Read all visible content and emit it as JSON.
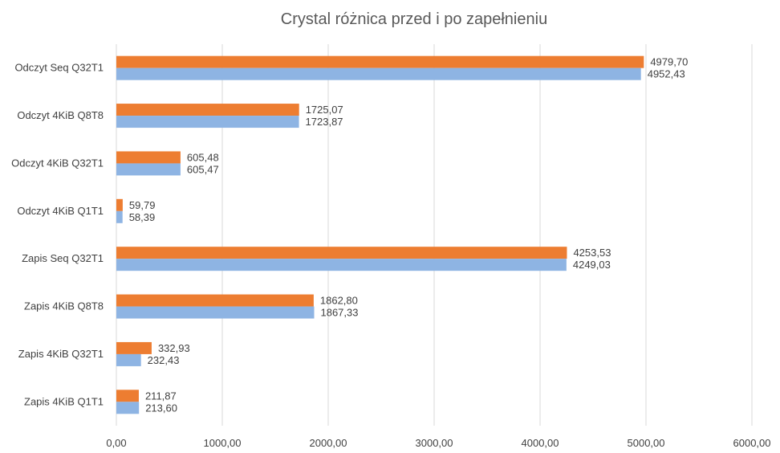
{
  "chart_data": {
    "type": "bar",
    "orientation": "horizontal",
    "title": "Crystal różnica przed i po zapełnieniu",
    "xlabel": "",
    "ylabel": "",
    "categories": [
      "Odczyt Seq Q32T1",
      "Odczyt 4KiB Q8T8",
      "Odczyt 4KiB Q32T1",
      "Odczyt 4KiB Q1T1",
      "Zapis Seq Q32T1",
      "Zapis 4KiB Q8T8",
      "Zapis 4KiB Q32T1",
      "Zapis 4KiB Q1T1"
    ],
    "series": [
      {
        "color": "#ed7d31",
        "values": [
          4979.7,
          1725.07,
          605.48,
          59.79,
          4253.53,
          1862.8,
          332.93,
          211.87
        ],
        "labels": [
          "4979,70",
          "1725,07",
          "605,48",
          "59,79",
          "4253,53",
          "1862,80",
          "332,93",
          "211,87"
        ]
      },
      {
        "color": "#8eb4e3",
        "values": [
          4952.43,
          1723.87,
          605.47,
          58.39,
          4249.03,
          1867.33,
          232.43,
          213.6
        ],
        "labels": [
          "4952,43",
          "1723,87",
          "605,47",
          "58,39",
          "4249,03",
          "1867,33",
          "232,43",
          "213,60"
        ]
      }
    ],
    "xlim": [
      0,
      6000
    ],
    "xticks": [
      0,
      1000,
      2000,
      3000,
      4000,
      5000,
      6000
    ],
    "xtick_labels": [
      "0,00",
      "1000,00",
      "2000,00",
      "3000,00",
      "4000,00",
      "5000,00",
      "6000,00"
    ],
    "grid": true,
    "legend": "none"
  }
}
